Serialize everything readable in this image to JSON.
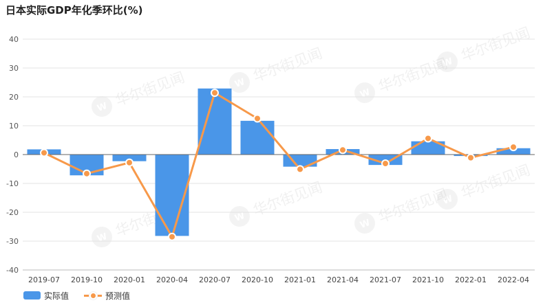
{
  "chart_data": {
    "type": "bar",
    "title": "日本实际GDP年化季环比(%)",
    "categories": [
      "2019-07",
      "2019-10",
      "2020-01",
      "2020-04",
      "2020-07",
      "2020-10",
      "2021-01",
      "2021-04",
      "2021-07",
      "2021-10",
      "2022-01",
      "2022-04"
    ],
    "series": [
      {
        "name": "实际值",
        "type": "bar",
        "color": "#4a96e8",
        "values": [
          1.8,
          -7.2,
          -2.3,
          -28.2,
          22.9,
          11.7,
          -4.2,
          1.9,
          -3.6,
          4.6,
          -0.5,
          2.2
        ]
      },
      {
        "name": "预测值",
        "type": "line",
        "color": "#f7994a",
        "values": [
          0.6,
          -6.6,
          -2.8,
          -28.5,
          21.4,
          12.5,
          -5.1,
          1.6,
          -3.1,
          5.6,
          -1.1,
          2.6
        ]
      }
    ],
    "ylim": [
      -40,
      40
    ],
    "yticks": [
      -40,
      -30,
      -20,
      -10,
      0,
      10,
      20,
      30,
      40
    ],
    "xlabel": "",
    "ylabel": "",
    "grid": true,
    "legend_position": "bottom-left"
  },
  "watermark": {
    "text": "华尔街见闻",
    "icon": "wallstreetcn-logo"
  }
}
